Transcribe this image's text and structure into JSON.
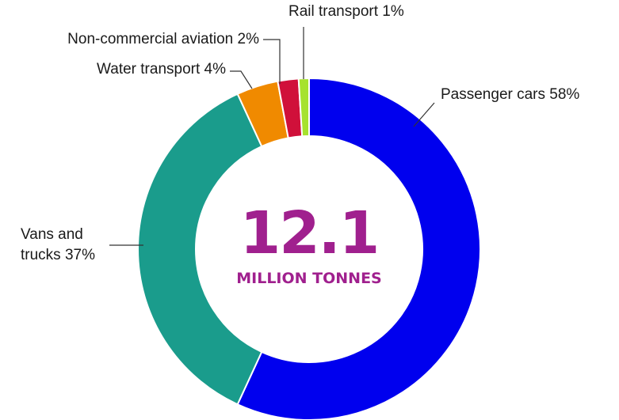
{
  "chart_data": {
    "type": "pie",
    "variant": "donut",
    "center_value": "12.1",
    "center_unit": "MILLION TONNES",
    "center_color": "#a0208e",
    "slices": [
      {
        "label": "Passenger cars 58%",
        "value": 58,
        "color": "#0000ee"
      },
      {
        "label": "Vans and trucks 37%",
        "value": 37,
        "color": "#1a9c8c"
      },
      {
        "label": "Water transport 4%",
        "value": 4,
        "color": "#f08a00"
      },
      {
        "label": "Non-commercial aviation 2%",
        "value": 2,
        "color": "#d0103a"
      },
      {
        "label": "Rail transport 1%",
        "value": 1,
        "color": "#a6e22e"
      }
    ]
  }
}
